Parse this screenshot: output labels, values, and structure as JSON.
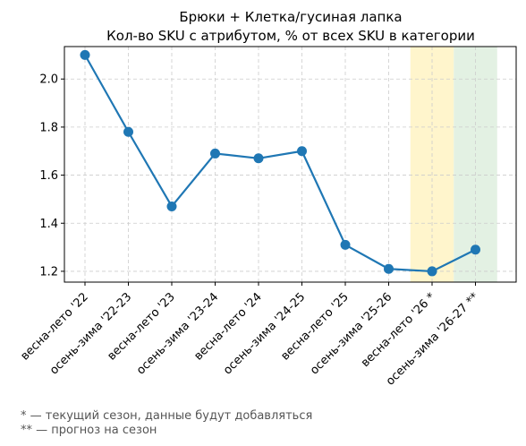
{
  "chart_data": {
    "type": "line",
    "title_line1": "Брюки + Клетка/гусиная лапка",
    "title_line2": "Кол-во SKU с атрибутом, % от всех SKU в категории",
    "categories": [
      "весна-лето '22",
      "осень-зима '22-23",
      "весна-лето '23",
      "осень-зима '23-24",
      "весна-лето '24",
      "осень-зима '24-25",
      "весна-лето '25",
      "осень-зима '25-26",
      "весна-лето '26 *",
      "осень-зима '26-27 **"
    ],
    "values": [
      2.1,
      1.78,
      1.47,
      1.69,
      1.67,
      1.7,
      1.31,
      1.21,
      1.2,
      1.29
    ],
    "ylim": [
      1.155,
      2.135
    ],
    "yticks": [
      "1.2",
      "1.4",
      "1.6",
      "1.8",
      "2.0"
    ],
    "grid": true,
    "line_color": "#1f77b4",
    "highlight_bands": [
      {
        "category_index": 8,
        "color": "#fff5cc"
      },
      {
        "category_index": 9,
        "color": "#e3f1e3"
      }
    ]
  },
  "footnotes": {
    "current": "* — текущий сезон, данные будут добавляться",
    "forecast": "** — прогноз на сезон"
  }
}
